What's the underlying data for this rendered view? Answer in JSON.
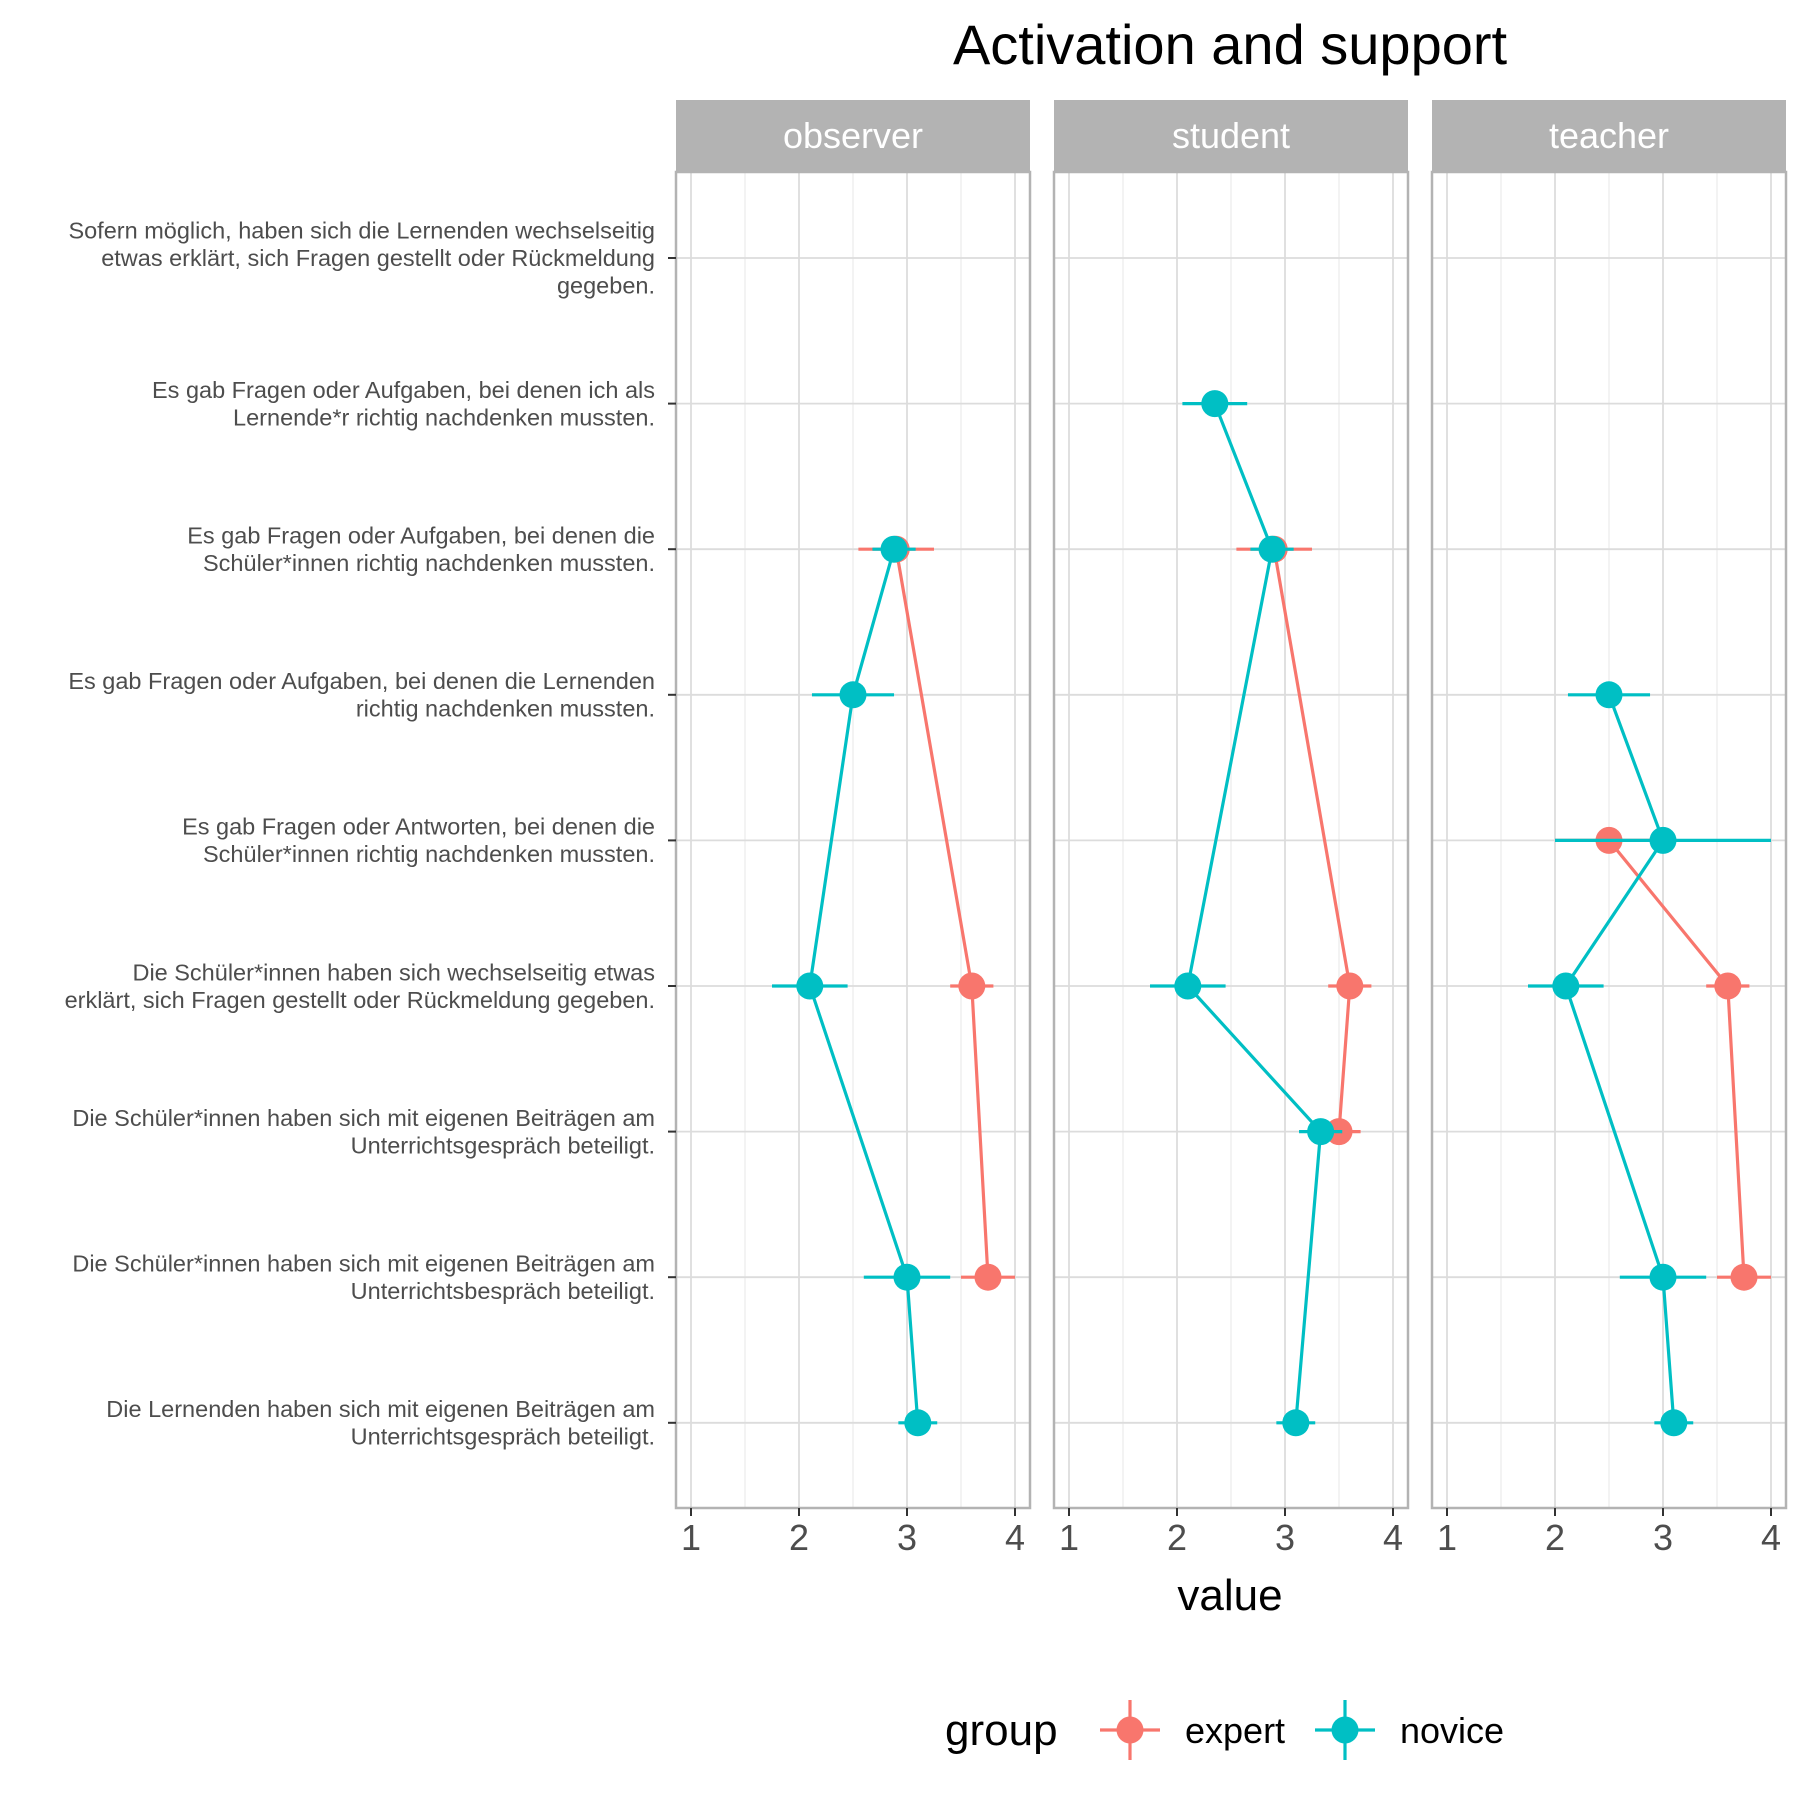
{
  "chart_data": {
    "type": "scatter",
    "title": "Activation and support",
    "xlabel": "value",
    "ylabel": "",
    "xlim": [
      1,
      4
    ],
    "x_ticks": [
      "1",
      "2",
      "3",
      "4"
    ],
    "facets": [
      "observer",
      "student",
      "teacher"
    ],
    "categories": [
      "Sofern möglich, haben sich die Lernenden wechselseitig etwas erklärt, sich Fragen gestellt oder Rückmeldung gegeben.",
      "Es gab Fragen oder Aufgaben, bei denen ich als Lernende*r richtig nachdenken mussten.",
      "Es gab Fragen oder Aufgaben, bei denen die Schüler*innen richtig nachdenken mussten.",
      "Es gab Fragen oder Aufgaben, bei denen die Lernenden richtig nachdenken mussten.",
      "Es gab Fragen oder Antworten, bei denen die Schüler*innen richtig nachdenken mussten.",
      "Die Schüler*innen haben sich wechselseitig etwas erklärt, sich Fragen gestellt oder Rückmeldung gegeben.",
      "Die Schüler*innen haben sich mit eigenen Beiträgen am Unterrichtsgespräch beteiligt.",
      "Die Schüler*innen haben sich mit eigenen Beiträgen am Unterrichtsbespräch beteiligt.",
      "Die Lernenden haben sich mit eigenen Beiträgen am Unterrichtsgespräch beteiligt."
    ],
    "category_lines": [
      [
        "Sofern möglich, haben sich die Lernenden wechselseitig",
        "etwas erklärt, sich Fragen gestellt oder Rückmeldung",
        "gegeben."
      ],
      [
        "Es gab Fragen oder Aufgaben, bei denen ich als",
        "Lernende*r richtig nachdenken mussten."
      ],
      [
        "Es gab Fragen oder Aufgaben, bei denen die",
        "Schüler*innen richtig nachdenken mussten."
      ],
      [
        "Es gab Fragen oder Aufgaben, bei denen die Lernenden",
        "richtig nachdenken mussten."
      ],
      [
        "Es gab Fragen oder Antworten, bei denen die",
        "Schüler*innen richtig nachdenken mussten."
      ],
      [
        "Die Schüler*innen haben sich wechselseitig etwas",
        "erklärt, sich Fragen gestellt oder Rückmeldung gegeben."
      ],
      [
        "Die Schüler*innen haben sich mit eigenen Beiträgen am",
        "Unterrichtsgespräch beteiligt."
      ],
      [
        "Die Schüler*innen haben sich mit eigenen Beiträgen am",
        "Unterrichtsbespräch beteiligt."
      ],
      [
        "Die Lernenden haben sich mit eigenen Beiträgen am",
        "Unterrichtsgespräch beteiligt."
      ]
    ],
    "series": [
      {
        "name": "expert",
        "color": "#F8766D",
        "panels": [
          [
            {
              "cat": 2,
              "x": 2.9,
              "lo": 2.55,
              "hi": 3.25
            },
            {
              "cat": 5,
              "x": 3.6,
              "lo": 3.4,
              "hi": 3.8
            },
            {
              "cat": 7,
              "x": 3.75,
              "lo": 3.5,
              "hi": 4.0
            }
          ],
          [
            {
              "cat": 2,
              "x": 2.9,
              "lo": 2.55,
              "hi": 3.25
            },
            {
              "cat": 5,
              "x": 3.6,
              "lo": 3.4,
              "hi": 3.8
            },
            {
              "cat": 6,
              "x": 3.5,
              "lo": 3.3,
              "hi": 3.7
            }
          ],
          [
            {
              "cat": 4,
              "x": 2.5,
              "lo": 2.0,
              "hi": 3.0
            },
            {
              "cat": 5,
              "x": 3.6,
              "lo": 3.4,
              "hi": 3.8
            },
            {
              "cat": 7,
              "x": 3.75,
              "lo": 3.5,
              "hi": 4.0
            }
          ]
        ]
      },
      {
        "name": "novice",
        "color": "#00BFC4",
        "panels": [
          [
            {
              "cat": 2,
              "x": 2.88,
              "lo": 2.68,
              "hi": 3.08
            },
            {
              "cat": 3,
              "x": 2.5,
              "lo": 2.12,
              "hi": 2.88
            },
            {
              "cat": 5,
              "x": 2.1,
              "lo": 1.75,
              "hi": 2.45
            },
            {
              "cat": 7,
              "x": 3.0,
              "lo": 2.6,
              "hi": 3.4
            },
            {
              "cat": 8,
              "x": 3.1,
              "lo": 2.92,
              "hi": 3.28
            }
          ],
          [
            {
              "cat": 1,
              "x": 2.35,
              "lo": 2.05,
              "hi": 2.65
            },
            {
              "cat": 2,
              "x": 2.88,
              "lo": 2.68,
              "hi": 3.08
            },
            {
              "cat": 5,
              "x": 2.1,
              "lo": 1.75,
              "hi": 2.45
            },
            {
              "cat": 6,
              "x": 3.33,
              "lo": 3.13,
              "hi": 3.53
            },
            {
              "cat": 8,
              "x": 3.1,
              "lo": 2.92,
              "hi": 3.28
            }
          ],
          [
            {
              "cat": 3,
              "x": 2.5,
              "lo": 2.12,
              "hi": 2.88
            },
            {
              "cat": 4,
              "x": 3.0,
              "lo": 2.0,
              "hi": 4.0
            },
            {
              "cat": 5,
              "x": 2.1,
              "lo": 1.75,
              "hi": 2.45
            },
            {
              "cat": 7,
              "x": 3.0,
              "lo": 2.6,
              "hi": 3.4
            },
            {
              "cat": 8,
              "x": 3.1,
              "lo": 2.92,
              "hi": 3.28
            }
          ]
        ]
      }
    ],
    "grid": true,
    "legend": {
      "title": "group",
      "position": "bottom",
      "entries": [
        "expert",
        "novice"
      ]
    }
  }
}
